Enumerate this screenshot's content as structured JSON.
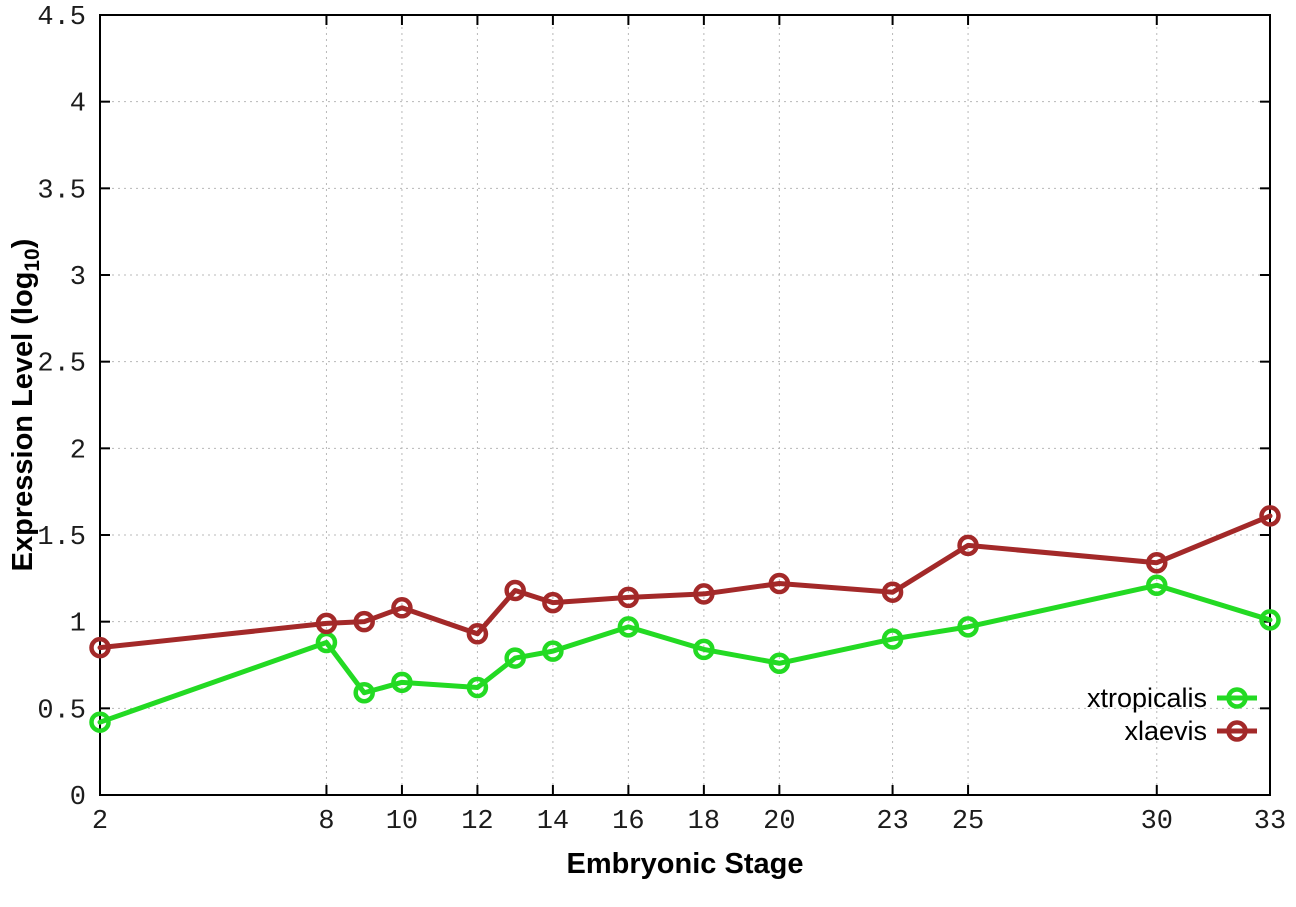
{
  "labels": {
    "ylabel_pre": "Expression Level (log",
    "ylabel_sub": "10",
    "ylabel_post": ")"
  },
  "chart_data": {
    "type": "line",
    "title": "",
    "xlabel": "Embryonic Stage",
    "ylabel": "Expression Level (log10)",
    "xlim": [
      2,
      33
    ],
    "ylim": [
      0,
      4.5
    ],
    "grid": true,
    "grid_color": "#b8b8b8",
    "axis_color": "#000000",
    "legend_position": "bottom-right-inside",
    "x_ticks": {
      "values": [
        2,
        8,
        10,
        12,
        14,
        16,
        18,
        20,
        23,
        25,
        30,
        33
      ],
      "labels": [
        "2",
        "8",
        "10",
        "12",
        "14",
        "16",
        "18",
        "20",
        "23",
        "25",
        "30",
        "33"
      ]
    },
    "y_ticks": {
      "values": [
        0,
        0.5,
        1,
        1.5,
        2,
        2.5,
        3,
        3.5,
        4,
        4.5
      ],
      "labels": [
        "0",
        "0.5",
        "1",
        "1.5",
        "2",
        "2.5",
        "3",
        "3.5",
        "4",
        "4.5"
      ]
    },
    "x": [
      2,
      8,
      9,
      10,
      12,
      13,
      14,
      16,
      18,
      20,
      23,
      25,
      30,
      33
    ],
    "series": [
      {
        "name": "xtropicalis",
        "color": "#23da23",
        "marker": "open-circle",
        "values": [
          0.42,
          0.88,
          0.59,
          0.65,
          0.62,
          0.79,
          0.83,
          0.97,
          0.84,
          0.76,
          0.9,
          0.97,
          1.21,
          1.01
        ]
      },
      {
        "name": "xlaevis",
        "color": "#a32929",
        "marker": "open-circle",
        "values": [
          0.85,
          0.99,
          1.0,
          1.08,
          0.93,
          1.18,
          1.11,
          1.14,
          1.16,
          1.22,
          1.17,
          1.44,
          1.34,
          1.61
        ]
      }
    ]
  }
}
